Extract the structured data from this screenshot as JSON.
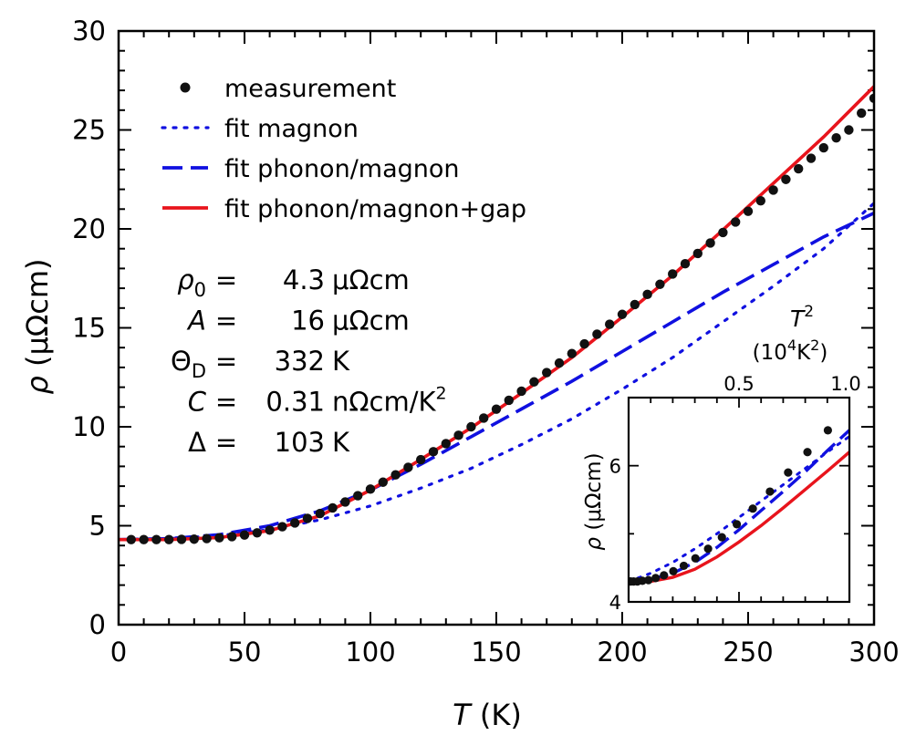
{
  "chart_data": {
    "type": "line",
    "xlabel": {
      "var": "T",
      "unit": "(K)"
    },
    "ylabel": {
      "var": "ρ",
      "unit": "(μΩcm)"
    },
    "xlim": [
      0,
      300
    ],
    "ylim": [
      0,
      30
    ],
    "xticks": [
      0,
      50,
      100,
      150,
      200,
      250,
      300
    ],
    "yticks": [
      0,
      5,
      10,
      15,
      20,
      25,
      30
    ],
    "grid": false,
    "legend_position": "top-left",
    "series": [
      {
        "name": "measurement",
        "style": "markers",
        "color": "#111111",
        "x": [
          5,
          10,
          15,
          20,
          25,
          30,
          35,
          40,
          45,
          50,
          55,
          60,
          65,
          70,
          75,
          80,
          85,
          90,
          95,
          100,
          105,
          110,
          115,
          120,
          125,
          130,
          135,
          140,
          145,
          150,
          155,
          160,
          165,
          170,
          175,
          180,
          185,
          190,
          195,
          200,
          205,
          210,
          215,
          220,
          225,
          230,
          235,
          240,
          245,
          250,
          255,
          260,
          265,
          270,
          275,
          280,
          285,
          290,
          295,
          300
        ],
        "y": [
          4.3,
          4.3,
          4.3,
          4.3,
          4.31,
          4.32,
          4.35,
          4.39,
          4.45,
          4.53,
          4.64,
          4.78,
          4.95,
          5.14,
          5.37,
          5.62,
          5.9,
          6.2,
          6.52,
          6.85,
          7.2,
          7.57,
          7.95,
          8.34,
          8.74,
          9.15,
          9.57,
          10.0,
          10.44,
          10.89,
          11.34,
          11.8,
          12.27,
          12.74,
          13.22,
          13.7,
          14.19,
          14.68,
          15.18,
          15.68,
          16.18,
          16.69,
          17.2,
          17.72,
          18.24,
          18.76,
          19.29,
          19.82,
          20.35,
          20.89,
          21.42,
          21.96,
          22.5,
          23.04,
          23.57,
          24.1,
          24.6,
          25.0,
          25.85,
          26.6
        ]
      },
      {
        "name": "fit  magnon",
        "style": "dotted",
        "color": "#1010e0",
        "x": [
          0,
          20,
          40,
          60,
          80,
          100,
          120,
          140,
          160,
          180,
          200,
          220,
          240,
          260,
          280,
          300
        ],
        "y": [
          4.3,
          4.35,
          4.5,
          4.8,
          5.3,
          6.0,
          6.9,
          7.9,
          9.1,
          10.4,
          11.9,
          13.5,
          15.3,
          17.1,
          19.0,
          21.3
        ]
      },
      {
        "name": "fit  phonon/magnon",
        "style": "dashed",
        "color": "#1010e0",
        "x": [
          0,
          20,
          40,
          60,
          80,
          100,
          120,
          140,
          160,
          180,
          200,
          220,
          240,
          260,
          280,
          300
        ],
        "y": [
          4.3,
          4.35,
          4.55,
          5.0,
          5.75,
          6.8,
          8.1,
          9.5,
          10.9,
          12.3,
          13.8,
          15.3,
          16.8,
          18.2,
          19.6,
          20.8
        ]
      },
      {
        "name": "fit  phonon/magnon+gap",
        "style": "solid",
        "color": "#e8141c",
        "x": [
          0,
          20,
          40,
          60,
          80,
          100,
          120,
          140,
          160,
          180,
          200,
          220,
          240,
          260,
          280,
          300
        ],
        "y": [
          4.3,
          4.3,
          4.4,
          4.75,
          5.5,
          6.8,
          8.35,
          9.95,
          11.7,
          13.5,
          15.55,
          17.65,
          19.95,
          22.3,
          24.65,
          27.2
        ]
      }
    ],
    "parameters": [
      {
        "symbol": "ρ",
        "sub": "0",
        "eq": "=",
        "value": "4.3",
        "unit": "μΩcm"
      },
      {
        "symbol": "A",
        "sub": "",
        "eq": "=",
        "value": "16",
        "unit": "μΩcm"
      },
      {
        "symbol": "Θ",
        "sub": "D",
        "eq": "=",
        "value": "332",
        "unit": "K"
      },
      {
        "symbol": "C",
        "sub": "",
        "eq": "=",
        "value": "0.31",
        "unit": "nΩcm/K",
        "unit_sup": "2"
      },
      {
        "symbol": "Δ",
        "sub": "",
        "eq": "=",
        "value": "103",
        "unit": "K"
      }
    ],
    "inset": {
      "xlabel": {
        "var": "T",
        "sup": "2",
        "unit_open": "(10",
        "unit_sup1": "4",
        "unit_mid": "K",
        "unit_sup2": "2",
        "unit_close": ")"
      },
      "ylabel": {
        "var": "ρ",
        "unit": "(μΩcm)"
      },
      "xlim": [
        0,
        1.0
      ],
      "ylim": [
        4,
        7
      ],
      "xticks": [
        0.5,
        1.0
      ],
      "xtick_labels": [
        "0.5",
        "1.0"
      ],
      "yticks": [
        4,
        6
      ],
      "measurement": {
        "x": [
          0.0025,
          0.01,
          0.0225,
          0.04,
          0.0625,
          0.09,
          0.1225,
          0.16,
          0.2025,
          0.25,
          0.3025,
          0.36,
          0.4225,
          0.49,
          0.5625,
          0.64,
          0.7225,
          0.81,
          0.9025
        ],
        "y": [
          4.3,
          4.3,
          4.3,
          4.3,
          4.31,
          4.32,
          4.35,
          4.39,
          4.45,
          4.53,
          4.64,
          4.78,
          4.95,
          5.14,
          5.37,
          5.62,
          5.9,
          6.2,
          6.52
        ]
      },
      "fits": [
        {
          "style": "dotted",
          "color": "#1010e0",
          "x": [
            0,
            0.1,
            0.2,
            0.3,
            0.4,
            0.5,
            0.6,
            0.7,
            0.8,
            0.9,
            1.0
          ],
          "y": [
            4.3,
            4.42,
            4.58,
            4.78,
            5.0,
            5.24,
            5.48,
            5.72,
            5.96,
            6.2,
            6.43
          ]
        },
        {
          "style": "dashed",
          "color": "#1010e0",
          "x": [
            0,
            0.1,
            0.2,
            0.3,
            0.4,
            0.5,
            0.6,
            0.7,
            0.8,
            0.9,
            1.0
          ],
          "y": [
            4.3,
            4.33,
            4.42,
            4.58,
            4.8,
            5.06,
            5.34,
            5.62,
            5.91,
            6.22,
            6.52
          ]
        },
        {
          "style": "solid",
          "color": "#e8141c",
          "x": [
            0,
            0.1,
            0.2,
            0.3,
            0.4,
            0.5,
            0.6,
            0.7,
            0.8,
            0.9,
            1.0
          ],
          "y": [
            4.3,
            4.3,
            4.36,
            4.48,
            4.66,
            4.88,
            5.12,
            5.38,
            5.65,
            5.92,
            6.2
          ]
        }
      ]
    }
  }
}
